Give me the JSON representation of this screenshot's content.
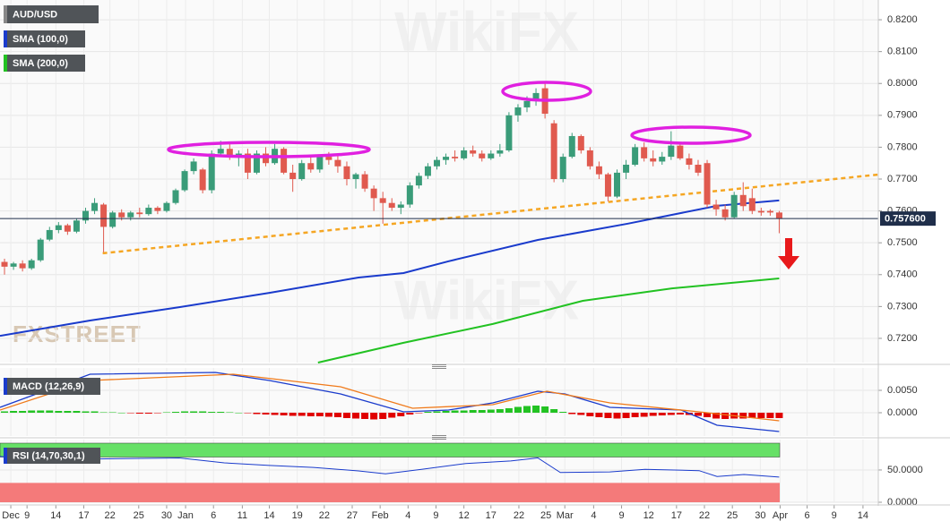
{
  "chart_data": [
    {
      "type": "candlestick",
      "title": "AUD/USD",
      "up_color": "#3a9c79",
      "down_color": "#e05a4f",
      "candles": [
        [
          0.744,
          0.745,
          0.74,
          0.7425
        ],
        [
          0.7425,
          0.744,
          0.7415,
          0.7435
        ],
        [
          0.7435,
          0.7445,
          0.741,
          0.742
        ],
        [
          0.742,
          0.745,
          0.7415,
          0.7445
        ],
        [
          0.7445,
          0.7515,
          0.744,
          0.751
        ],
        [
          0.751,
          0.755,
          0.7505,
          0.754
        ],
        [
          0.754,
          0.7565,
          0.753,
          0.7555
        ],
        [
          0.7555,
          0.756,
          0.7525,
          0.7535
        ],
        [
          0.7535,
          0.7575,
          0.753,
          0.757
        ],
        [
          0.757,
          0.761,
          0.756,
          0.76
        ],
        [
          0.76,
          0.764,
          0.759,
          0.7625
        ],
        [
          0.762,
          0.7625,
          0.747,
          0.755
        ],
        [
          0.755,
          0.76,
          0.7545,
          0.7595
        ],
        [
          0.7595,
          0.7605,
          0.757,
          0.758
        ],
        [
          0.758,
          0.76,
          0.757,
          0.7595
        ],
        [
          0.7595,
          0.761,
          0.758,
          0.759
        ],
        [
          0.759,
          0.762,
          0.7585,
          0.761
        ],
        [
          0.761,
          0.7615,
          0.759,
          0.76
        ],
        [
          0.76,
          0.763,
          0.7595,
          0.7625
        ],
        [
          0.7625,
          0.767,
          0.762,
          0.7665
        ],
        [
          0.7665,
          0.773,
          0.766,
          0.7725
        ],
        [
          0.7725,
          0.7765,
          0.7715,
          0.7755
        ],
        [
          0.773,
          0.7735,
          0.7655,
          0.7665
        ],
        [
          0.7665,
          0.779,
          0.7655,
          0.778
        ],
        [
          0.778,
          0.782,
          0.777,
          0.7795
        ],
        [
          0.7795,
          0.7815,
          0.776,
          0.777
        ],
        [
          0.777,
          0.779,
          0.774,
          0.778
        ],
        [
          0.778,
          0.7795,
          0.77,
          0.772
        ],
        [
          0.772,
          0.779,
          0.7715,
          0.778
        ],
        [
          0.778,
          0.78,
          0.774,
          0.775
        ],
        [
          0.775,
          0.781,
          0.7745,
          0.7795
        ],
        [
          0.7795,
          0.78,
          0.7715,
          0.772
        ],
        [
          0.772,
          0.7745,
          0.766,
          0.77
        ],
        [
          0.77,
          0.776,
          0.7695,
          0.775
        ],
        [
          0.775,
          0.777,
          0.772,
          0.773
        ],
        [
          0.773,
          0.7775,
          0.772,
          0.777
        ],
        [
          0.777,
          0.7785,
          0.7745,
          0.776
        ],
        [
          0.776,
          0.7775,
          0.772,
          0.774
        ],
        [
          0.774,
          0.7755,
          0.768,
          0.77
        ],
        [
          0.77,
          0.772,
          0.767,
          0.7715
        ],
        [
          0.7715,
          0.7725,
          0.766,
          0.767
        ],
        [
          0.767,
          0.768,
          0.76,
          0.764
        ],
        [
          0.764,
          0.766,
          0.756,
          0.7625
        ],
        [
          0.7625,
          0.764,
          0.76,
          0.761
        ],
        [
          0.761,
          0.763,
          0.759,
          0.762
        ],
        [
          0.762,
          0.769,
          0.761,
          0.768
        ],
        [
          0.768,
          0.772,
          0.767,
          0.771
        ],
        [
          0.771,
          0.775,
          0.77,
          0.774
        ],
        [
          0.774,
          0.777,
          0.773,
          0.776
        ],
        [
          0.776,
          0.778,
          0.7745,
          0.777
        ],
        [
          0.777,
          0.779,
          0.7755,
          0.7765
        ],
        [
          0.7765,
          0.78,
          0.776,
          0.779
        ],
        [
          0.779,
          0.7805,
          0.777,
          0.778
        ],
        [
          0.778,
          0.779,
          0.7755,
          0.7765
        ],
        [
          0.7765,
          0.779,
          0.776,
          0.778
        ],
        [
          0.778,
          0.781,
          0.777,
          0.779
        ],
        [
          0.779,
          0.791,
          0.7785,
          0.79
        ],
        [
          0.79,
          0.7935,
          0.788,
          0.7925
        ],
        [
          0.7925,
          0.796,
          0.791,
          0.7945
        ],
        [
          0.7945,
          0.7985,
          0.793,
          0.797
        ],
        [
          0.7985,
          0.8005,
          0.789,
          0.7905
        ],
        [
          0.7875,
          0.7885,
          0.769,
          0.77
        ],
        [
          0.77,
          0.778,
          0.769,
          0.777
        ],
        [
          0.777,
          0.7845,
          0.7765,
          0.7835
        ],
        [
          0.7835,
          0.784,
          0.778,
          0.779
        ],
        [
          0.779,
          0.78,
          0.773,
          0.774
        ],
        [
          0.774,
          0.7755,
          0.77,
          0.7715
        ],
        [
          0.7715,
          0.772,
          0.763,
          0.7645
        ],
        [
          0.7645,
          0.773,
          0.764,
          0.772
        ],
        [
          0.772,
          0.776,
          0.77,
          0.7745
        ],
        [
          0.7745,
          0.781,
          0.774,
          0.78
        ],
        [
          0.78,
          0.7815,
          0.7755,
          0.7765
        ],
        [
          0.7765,
          0.779,
          0.774,
          0.7755
        ],
        [
          0.7755,
          0.7785,
          0.7745,
          0.777
        ],
        [
          0.777,
          0.785,
          0.776,
          0.7805
        ],
        [
          0.7805,
          0.7815,
          0.776,
          0.7765
        ],
        [
          0.7765,
          0.778,
          0.773,
          0.7745
        ],
        [
          0.7745,
          0.776,
          0.771,
          0.772
        ],
        [
          0.775,
          0.776,
          0.761,
          0.762
        ],
        [
          0.762,
          0.7635,
          0.7585,
          0.7605
        ],
        [
          0.7605,
          0.762,
          0.757,
          0.758
        ],
        [
          0.758,
          0.766,
          0.7575,
          0.765
        ],
        [
          0.765,
          0.769,
          0.76,
          0.7615
        ],
        [
          0.764,
          0.767,
          0.759,
          0.76
        ],
        [
          0.76,
          0.761,
          0.7585,
          0.7595
        ],
        [
          0.76,
          0.7605,
          0.7585,
          0.7595
        ],
        [
          0.7595,
          0.76,
          0.753,
          0.7576
        ]
      ],
      "series": [
        {
          "name": "SMA (100,0)",
          "color": "#1a3bcc",
          "x": [
            -0.5,
            9.5,
            19.4,
            29.4,
            39.3,
            44.3,
            49.3,
            59.2,
            69.2,
            79.1,
            86
          ],
          "values": [
            0.7208,
            0.7256,
            0.7298,
            0.7343,
            0.7391,
            0.7405,
            0.7442,
            0.7509,
            0.756,
            0.7616,
            0.7633
          ]
        },
        {
          "name": "SMA (200,0)",
          "color": "#22c222",
          "x": [
            34.8,
            44.3,
            54.2,
            64.2,
            74.1,
            86
          ],
          "values": [
            0.7124,
            0.7186,
            0.7245,
            0.7318,
            0.7357,
            0.7388
          ]
        }
      ],
      "trendline": {
        "color": "#f5a623",
        "x": [
          10.9,
          97
        ],
        "values": [
          0.7467,
          0.7714
        ]
      },
      "last_price": {
        "value": 0.7576,
        "label": "0.757600"
      },
      "watermarks": [
        "FXSTREET",
        "WikiFX"
      ],
      "ylim": [
        0.7124,
        0.8262
      ],
      "yticks": [
        {
          "value": 0.72,
          "label": "0.7200"
        },
        {
          "value": 0.73,
          "label": "0.7300"
        },
        {
          "value": 0.74,
          "label": "0.7400"
        },
        {
          "value": 0.75,
          "label": "0.7500"
        },
        {
          "value": 0.76,
          "label": "0.7600"
        },
        {
          "value": 0.77,
          "label": "0.7700"
        },
        {
          "value": 0.78,
          "label": "0.7800"
        },
        {
          "value": 0.79,
          "label": "0.7900"
        },
        {
          "value": 0.8,
          "label": "0.8000"
        },
        {
          "value": 0.81,
          "label": "0.8100"
        },
        {
          "value": 0.82,
          "label": "0.8200"
        }
      ],
      "xlim": [
        -0.5,
        97
      ],
      "xticks": [
        {
          "value": 0.7,
          "label": "Dec"
        },
        {
          "value": 2.5,
          "label": "9"
        },
        {
          "value": 5.7,
          "label": "14"
        },
        {
          "value": 8.8,
          "label": "17"
        },
        {
          "value": 11.7,
          "label": "22"
        },
        {
          "value": 14.9,
          "label": "25"
        },
        {
          "value": 18,
          "label": "30"
        },
        {
          "value": 20.1,
          "label": "Jan"
        },
        {
          "value": 23.2,
          "label": "6"
        },
        {
          "value": 26.4,
          "label": "11"
        },
        {
          "value": 29.4,
          "label": "14"
        },
        {
          "value": 32.5,
          "label": "19"
        },
        {
          "value": 35.5,
          "label": "22"
        },
        {
          "value": 38.6,
          "label": "27"
        },
        {
          "value": 41.7,
          "label": "Feb"
        },
        {
          "value": 44.8,
          "label": "4"
        },
        {
          "value": 47.9,
          "label": "9"
        },
        {
          "value": 51,
          "label": "12"
        },
        {
          "value": 54,
          "label": "17"
        },
        {
          "value": 57.1,
          "label": "22"
        },
        {
          "value": 60.1,
          "label": "25"
        },
        {
          "value": 62.2,
          "label": "Mar"
        },
        {
          "value": 65.4,
          "label": "4"
        },
        {
          "value": 68.5,
          "label": "9"
        },
        {
          "value": 71.5,
          "label": "12"
        },
        {
          "value": 74.6,
          "label": "17"
        },
        {
          "value": 77.7,
          "label": "22"
        },
        {
          "value": 80.8,
          "label": "25"
        },
        {
          "value": 83.9,
          "label": "30"
        },
        {
          "value": 86.1,
          "label": "Apr"
        },
        {
          "value": 89.1,
          "label": "6"
        },
        {
          "value": 92.1,
          "label": "9"
        },
        {
          "value": 95.3,
          "label": "14"
        }
      ]
    },
    {
      "type": "macd",
      "label": "MACD (12,26,9)",
      "up_color": "#22c222",
      "down_color": "#e00000",
      "histogram": [
        0.0003,
        0.0004,
        0.0004,
        0.0005,
        0.0005,
        0.0005,
        0.0004,
        0.0004,
        0.0004,
        0.0003,
        0.0003,
        0.0001,
        0.0001,
        0.0,
        -0.0001,
        -0.0002,
        -0.0002,
        -0.0001,
        0.0001,
        0.0002,
        0.0003,
        0.0003,
        0.0003,
        0.0002,
        0.0002,
        0.0001,
        0.0,
        -0.0001,
        -0.0003,
        -0.0004,
        -0.0005,
        -0.0006,
        -0.0007,
        -0.0007,
        -0.0008,
        -0.0008,
        -0.0009,
        -0.001,
        -0.0012,
        -0.0013,
        -0.0014,
        -0.0015,
        -0.0014,
        -0.0011,
        -0.0008,
        -0.0004,
        -0.0001,
        0.0002,
        0.0003,
        0.0004,
        0.0005,
        0.0005,
        0.0006,
        0.0006,
        0.0007,
        0.0008,
        0.001,
        0.0013,
        0.0015,
        0.0016,
        0.0014,
        0.0008,
        0.0002,
        -0.0003,
        -0.0005,
        -0.0008,
        -0.001,
        -0.0012,
        -0.0013,
        -0.0012,
        -0.001,
        -0.0009,
        -0.0007,
        -0.0006,
        -0.0005,
        -0.0004,
        -0.0005,
        -0.0007,
        -0.001,
        -0.0013,
        -0.0014,
        -0.0013,
        -0.0013,
        -0.0012,
        -0.0012,
        -0.0012,
        -0.0012
      ],
      "series": [
        {
          "color": "#1a3bcc",
          "x": [
            -0.5,
            9.5,
            23.4,
            29.4,
            37.3,
            44.3,
            49.3,
            54.2,
            59.2,
            62.2,
            67.2,
            75.1,
            79.1,
            86
          ],
          "values": [
            0.0012,
            0.0086,
            0.009,
            0.0072,
            0.0042,
            0.0002,
            0.0006,
            0.0022,
            0.0048,
            0.0042,
            0.0012,
            0.0006,
            -0.0028,
            -0.0042
          ]
        },
        {
          "color": "#f07a1a",
          "x": [
            -0.5,
            9.5,
            25.4,
            37.3,
            45.3,
            54.2,
            60.2,
            67.2,
            77.1,
            86
          ],
          "values": [
            0.0006,
            0.0072,
            0.0086,
            0.0058,
            0.001,
            0.0018,
            0.0048,
            0.0022,
            0.0002,
            -0.0018
          ]
        }
      ],
      "ylim": [
        -0.0052,
        0.01
      ],
      "yticks": [
        {
          "value": 0,
          "label": "0.0000"
        },
        {
          "value": 0.005,
          "label": "0.0050"
        }
      ]
    },
    {
      "type": "rsi",
      "label": "RSI (14,70,30,1)",
      "overbought": 70,
      "oversold": 30,
      "overbought_color": "#66e066",
      "oversold_color": "#f47a7a",
      "series": [
        {
          "color": "#1a3bcc",
          "x": [
            -0.5,
            4.5,
            9.5,
            19.4,
            24.4,
            29.4,
            34.3,
            39.3,
            42.3,
            46.3,
            51.2,
            56.2,
            59.2,
            61.7,
            67.2,
            71.1,
            77.1,
            79.1,
            82.1,
            86
          ],
          "values": [
            71,
            63,
            67,
            68.6,
            61,
            57,
            54,
            48.6,
            44,
            51,
            60,
            64,
            68.6,
            46,
            47,
            51,
            49,
            40,
            43,
            39
          ]
        }
      ],
      "ylim": [
        0,
        97.1
      ],
      "yticks": [
        {
          "value": 0,
          "label": "0.0000"
        },
        {
          "value": 50,
          "label": "50.0000"
        }
      ]
    }
  ]
}
